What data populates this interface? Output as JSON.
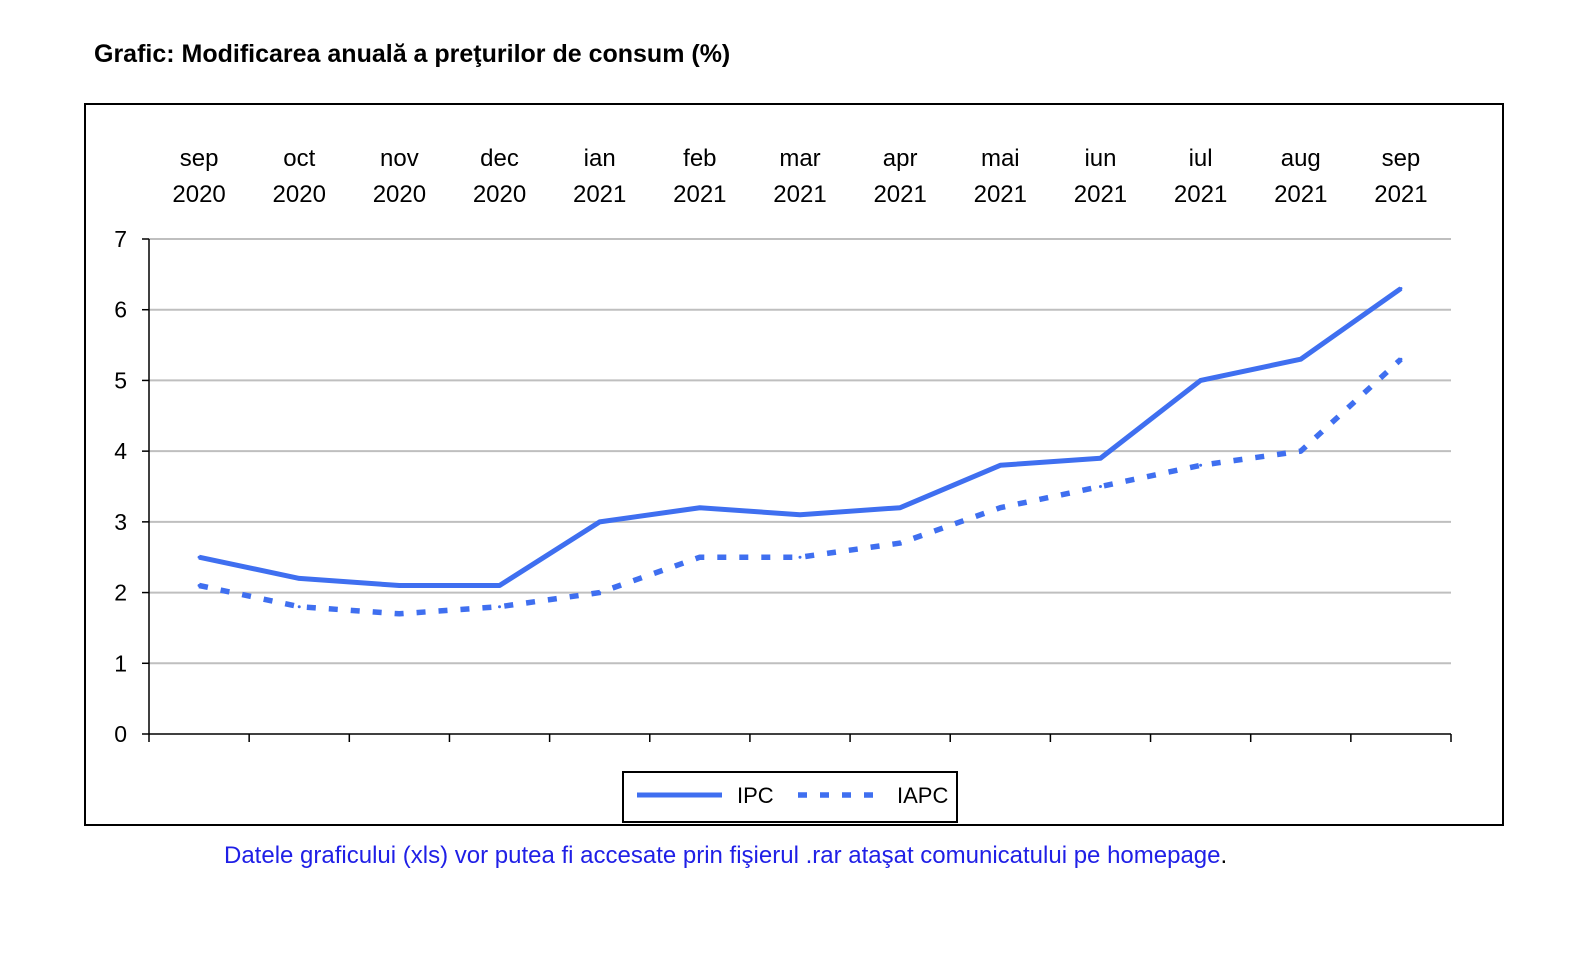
{
  "title": "Grafic: Modificarea anuală a preţurilor de consum (%)",
  "footnote": {
    "text": "Datele graficului (xls) vor putea fi accesate prin fişierul .rar  ataşat comunicatului pe homepage",
    "end": "."
  },
  "colors": {
    "series": "#3f6ff0",
    "grid": "#bfbfbf",
    "axis": "#000000",
    "footnote": "#1f1fe6"
  },
  "chart_data": {
    "type": "line",
    "title": "Grafic: Modificarea anuală a preţurilor de consum (%)",
    "categories": [
      [
        "sep",
        "2020"
      ],
      [
        "oct",
        "2020"
      ],
      [
        "nov",
        "2020"
      ],
      [
        "dec",
        "2020"
      ],
      [
        "ian",
        "2021"
      ],
      [
        "feb",
        "2021"
      ],
      [
        "mar",
        "2021"
      ],
      [
        "apr",
        "2021"
      ],
      [
        "mai",
        "2021"
      ],
      [
        "iun",
        "2021"
      ],
      [
        "iul",
        "2021"
      ],
      [
        "aug",
        "2021"
      ],
      [
        "sep",
        "2021"
      ]
    ],
    "series": [
      {
        "name": "IPC",
        "style": "solid",
        "values": [
          2.5,
          2.2,
          2.1,
          2.1,
          3.0,
          3.2,
          3.1,
          3.2,
          3.8,
          3.9,
          5.0,
          5.3,
          6.3
        ]
      },
      {
        "name": "IAPC",
        "style": "dotted",
        "values": [
          2.1,
          1.8,
          1.7,
          1.8,
          2.0,
          2.5,
          2.5,
          2.7,
          3.2,
          3.5,
          3.8,
          4.0,
          5.3
        ]
      }
    ],
    "ylim": [
      0,
      7
    ],
    "yticks": [
      0,
      1,
      2,
      3,
      4,
      5,
      6,
      7
    ],
    "xlabel": "",
    "ylabel": "",
    "grid": true,
    "x_labels_position": "top",
    "legend_position": "bottom-center"
  }
}
